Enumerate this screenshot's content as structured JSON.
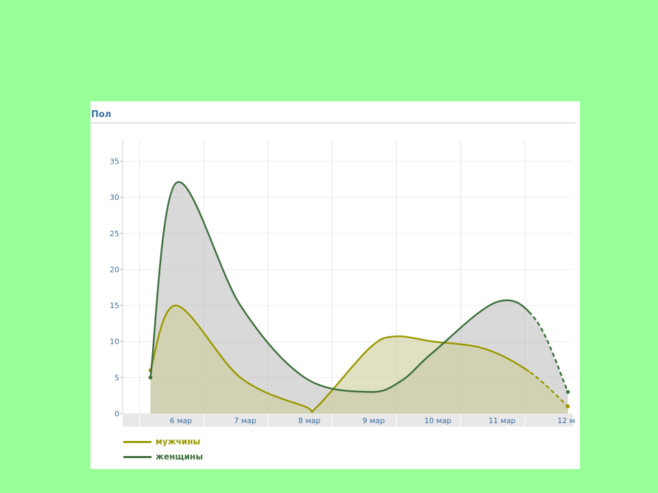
{
  "panel": {
    "title": "Пол"
  },
  "chart_data": {
    "type": "area",
    "x": [
      "6 мар",
      "7 мар",
      "8 мар",
      "9 мар",
      "10 мар",
      "11 мар",
      "12 м"
    ],
    "yticks": [
      0,
      5,
      10,
      15,
      20,
      25,
      30,
      35
    ],
    "ylim": [
      0,
      38
    ],
    "grid": true,
    "legend_position": "bottom-left",
    "series": [
      {
        "name": "мужчины",
        "color": "#999900",
        "points": [
          [
            5.6,
            6
          ],
          [
            6,
            15
          ],
          [
            7,
            5
          ],
          [
            8,
            1
          ],
          [
            8.2,
            1
          ],
          [
            9,
            9
          ],
          [
            9.4,
            10.7
          ],
          [
            10,
            10
          ],
          [
            10.8,
            9
          ],
          [
            11.5,
            5.8
          ],
          [
            12.1,
            1
          ]
        ]
      },
      {
        "name": "женщины",
        "color": "#3d6e3d",
        "points": [
          [
            5.6,
            5
          ],
          [
            6,
            32
          ],
          [
            7,
            15
          ],
          [
            8,
            5
          ],
          [
            9,
            3
          ],
          [
            9.5,
            4.5
          ],
          [
            10,
            8.5
          ],
          [
            11,
            15.5
          ],
          [
            11.6,
            13
          ],
          [
            12.1,
            3
          ]
        ]
      }
    ],
    "dashed_from_x": 11.5
  },
  "legend": {
    "items": [
      {
        "label": "мужчины",
        "color": "#999900"
      },
      {
        "label": "женщины",
        "color": "#3d6e3d"
      }
    ]
  }
}
